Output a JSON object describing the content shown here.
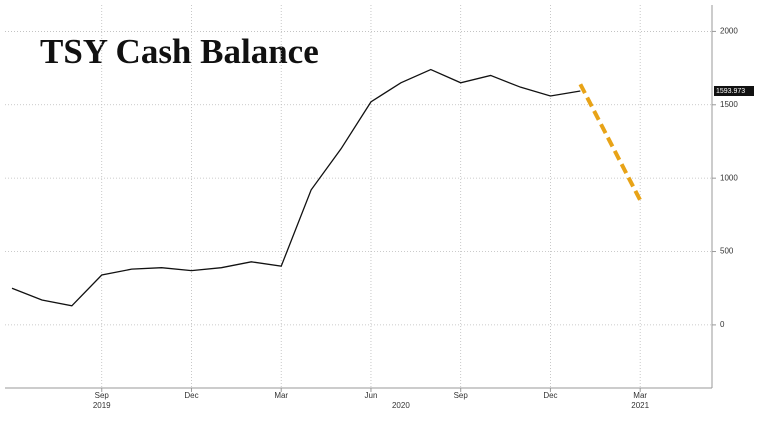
{
  "chart_data": {
    "type": "line",
    "title": "TSY Cash Balance",
    "x": [
      "2019-06",
      "2019-07",
      "2019-08",
      "2019-09",
      "2019-10",
      "2019-11",
      "2019-12",
      "2020-01",
      "2020-02",
      "2020-03",
      "2020-04",
      "2020-05",
      "2020-06",
      "2020-07",
      "2020-08",
      "2020-09",
      "2020-10",
      "2020-11",
      "2020-12",
      "2021-01"
    ],
    "series": [
      {
        "color": "#111111",
        "values": [
          250,
          170,
          130,
          340,
          380,
          390,
          370,
          390,
          430,
          400,
          920,
          1200,
          1520,
          1650,
          1740,
          1650,
          1700,
          1620,
          1560,
          1594
        ]
      },
      {
        "color": "#e8a317",
        "dashed": true,
        "x": [
          "2021-01",
          "2021-03"
        ],
        "values": [
          1640,
          850
        ]
      }
    ],
    "last_value": 1593.973,
    "xlim": [
      "2019-06",
      "2021-05"
    ],
    "xticks": [
      {
        "value": "2019-09",
        "label": "Sep"
      },
      {
        "value": "2019-12",
        "label": "Dec"
      },
      {
        "value": "2020-03",
        "label": "Mar"
      },
      {
        "value": "2020-06",
        "label": "Jun"
      },
      {
        "value": "2020-09",
        "label": "Sep"
      },
      {
        "value": "2020-12",
        "label": "Dec"
      },
      {
        "value": "2021-03",
        "label": "Mar"
      }
    ],
    "year_labels": [
      {
        "value": "2019-09",
        "label": "2019"
      },
      {
        "value": "2020-07",
        "label": "2020"
      },
      {
        "value": "2021-03",
        "label": "2021"
      }
    ],
    "ylim": [
      -430,
      2180
    ],
    "yticks": [
      0,
      500,
      1000,
      1500,
      2000
    ],
    "grid": true
  }
}
